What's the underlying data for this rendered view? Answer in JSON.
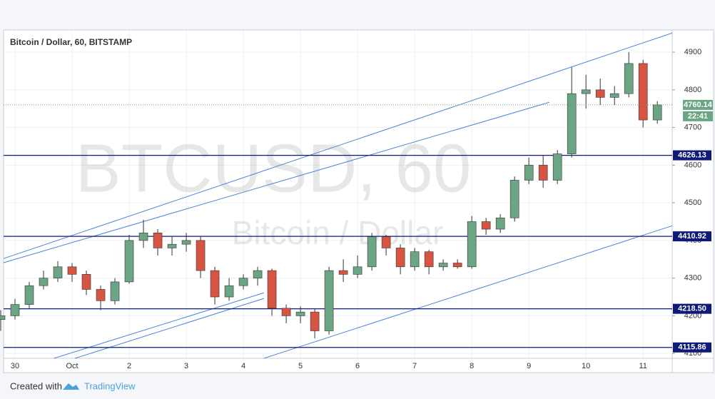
{
  "chart_data": {
    "type": "candlestick",
    "title": "Bitcoin / Dollar, 60, BITSTAMP",
    "watermark": "BTCUSD, 60",
    "watermark_subtitle": "Bitcoin / Dollar",
    "footer_text": "Created with",
    "footer_brand": "TradingView",
    "countdown": "22:41",
    "up_color": "#6ba583",
    "down_color": "#d75442",
    "level_color": "#0d1a7a",
    "trend_color": "#4a86d8",
    "grid": true,
    "x": [
      -0.25,
      0,
      0.25,
      0.5,
      0.75,
      1,
      1.25,
      1.5,
      1.75,
      2,
      2.25,
      2.5,
      2.75,
      3,
      3.25,
      3.5,
      3.75,
      4,
      4.25,
      4.5,
      4.75,
      5,
      5.25,
      5.5,
      5.75,
      6,
      6.25,
      6.5,
      6.75,
      7,
      7.25,
      7.5,
      7.75,
      8,
      8.25,
      8.5,
      8.75,
      9,
      9.25,
      9.5,
      9.75,
      10,
      10.25,
      10.5,
      10.75,
      11,
      11.25
    ],
    "open": [
      4190,
      4200,
      4230,
      4280,
      4300,
      4330,
      4310,
      4270,
      4240,
      4290,
      4400,
      4420,
      4380,
      4390,
      4400,
      4320,
      4250,
      4280,
      4300,
      4320,
      4220,
      4200,
      4210,
      4160,
      4320,
      4310,
      4330,
      4410,
      4380,
      4330,
      4370,
      4330,
      4340,
      4330,
      4450,
      4430,
      4460,
      4560,
      4600,
      4560,
      4630,
      4790,
      4800,
      4780,
      4790,
      4870,
      4720
    ],
    "high": [
      4215,
      4245,
      4290,
      4320,
      4345,
      4340,
      4320,
      4280,
      4300,
      4415,
      4455,
      4430,
      4410,
      4420,
      4410,
      4330,
      4300,
      4310,
      4330,
      4325,
      4230,
      4225,
      4220,
      4330,
      4350,
      4360,
      4420,
      4415,
      4390,
      4380,
      4375,
      4350,
      4350,
      4465,
      4460,
      4470,
      4570,
      4620,
      4625,
      4640,
      4860,
      4840,
      4830,
      4810,
      4900,
      4880,
      4770
    ],
    "low": [
      4160,
      4190,
      4220,
      4270,
      4290,
      4290,
      4255,
      4215,
      4230,
      4285,
      4380,
      4360,
      4360,
      4370,
      4300,
      4230,
      4240,
      4270,
      4280,
      4200,
      4180,
      4180,
      4140,
      4150,
      4290,
      4300,
      4320,
      4360,
      4310,
      4320,
      4310,
      4320,
      4325,
      4325,
      4415,
      4420,
      4450,
      4550,
      4540,
      4550,
      4620,
      4750,
      4760,
      4760,
      4780,
      4700,
      4710
    ],
    "close": [
      4200,
      4230,
      4280,
      4300,
      4330,
      4310,
      4270,
      4240,
      4290,
      4400,
      4420,
      4380,
      4390,
      4400,
      4320,
      4250,
      4280,
      4300,
      4320,
      4220,
      4200,
      4210,
      4160,
      4320,
      4310,
      4330,
      4410,
      4380,
      4330,
      4370,
      4330,
      4340,
      4330,
      4450,
      4430,
      4460,
      4560,
      4600,
      4560,
      4630,
      4790,
      4800,
      4780,
      4790,
      4870,
      4720,
      4760.14
    ],
    "last_price": 4760.14,
    "levels": [
      4626.13,
      4410.92,
      {
        "value": 4218.5,
        "label": "4218.50"
      },
      4115.86
    ],
    "trend_lines": [
      {
        "x": [
          -0.2,
          11.51
        ],
        "y": [
          4352,
          4951
        ]
      },
      {
        "x": [
          -0.2,
          9.36
        ],
        "y": [
          4341,
          4767
        ]
      },
      {
        "x": [
          4.36,
          11.51
        ],
        "y": [
          4087,
          4439
        ]
      },
      {
        "x": [
          0.68,
          4.36
        ],
        "y": [
          4087,
          4261
        ]
      },
      {
        "x": [
          1.05,
          4.36
        ],
        "y": [
          4087,
          4246
        ]
      }
    ],
    "xlim": [
      -0.2,
      11.51
    ],
    "xticks": [
      {
        "value": 0,
        "label": "30"
      },
      {
        "value": 1,
        "label": "Oct"
      },
      2,
      3,
      4,
      5,
      6,
      7,
      8,
      9,
      10,
      11
    ],
    "ylim": [
      4087,
      4959
    ],
    "yticks": [
      4100,
      4200,
      4300,
      4400,
      4500,
      4600,
      4700,
      4800,
      4900
    ]
  }
}
